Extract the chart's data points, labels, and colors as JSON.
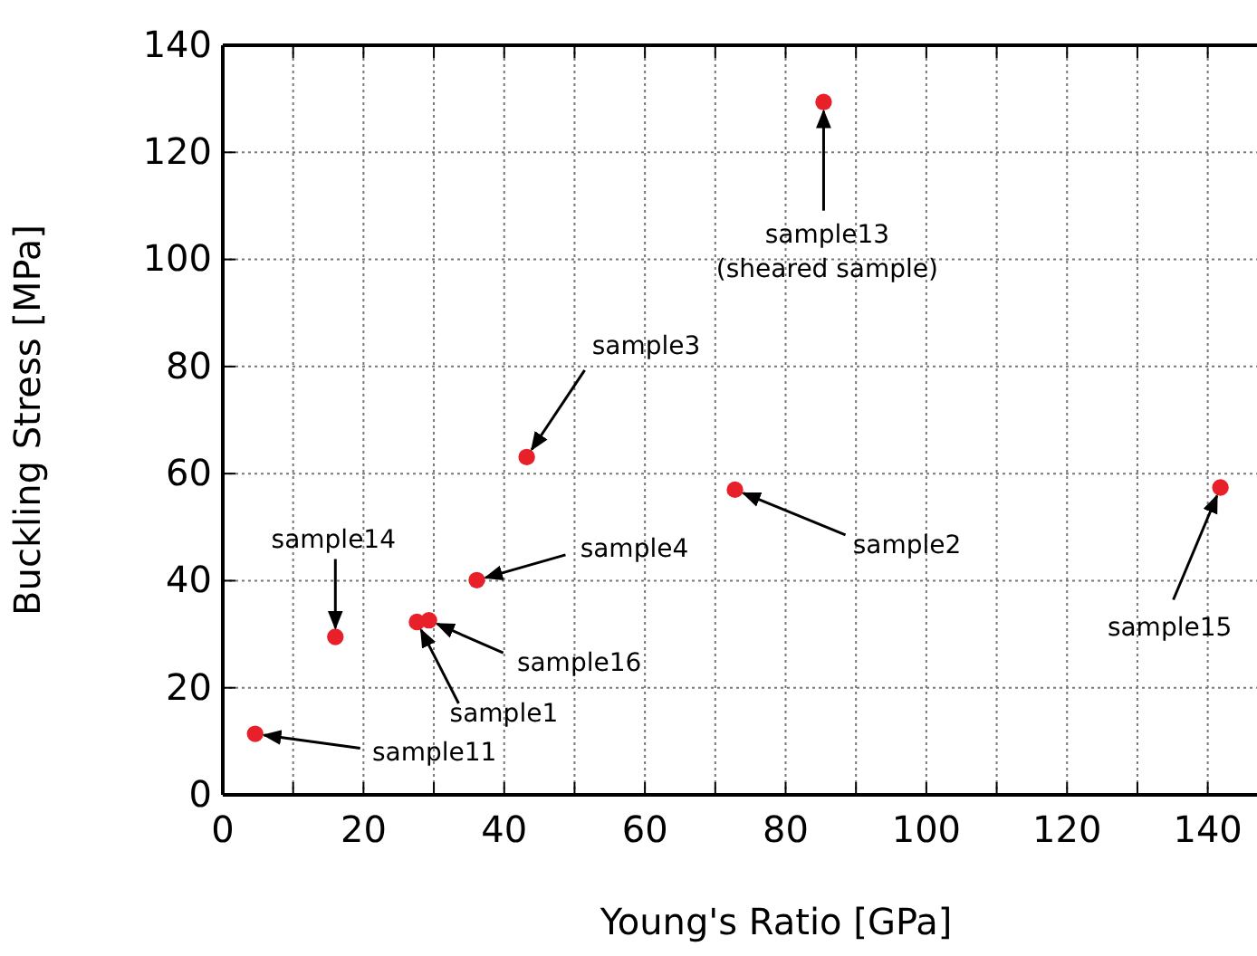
{
  "chart_data": {
    "type": "scatter",
    "xlabel": "Young's Ratio [GPa]",
    "ylabel": "Buckling Stress [MPa]",
    "x": [
      85.4,
      43.2,
      72.8,
      141.8,
      36.1,
      16.0,
      27.6,
      29.3,
      4.6
    ],
    "values": [
      129.4,
      63.1,
      57.0,
      57.4,
      40.1,
      29.5,
      32.3,
      32.6,
      11.4
    ],
    "color": "#e8202a",
    "marker": "circle",
    "grid": true,
    "xlim": [
      0,
      147
    ],
    "ylim": [
      0,
      140
    ],
    "xticks": [
      0,
      {
        "value": 10,
        "label": null
      },
      20,
      {
        "value": 30,
        "label": null
      },
      40,
      {
        "value": 50,
        "label": null
      },
      60,
      {
        "value": 70,
        "label": null
      },
      80,
      {
        "value": 90,
        "label": null
      },
      100,
      {
        "value": 110,
        "label": null
      },
      120,
      {
        "value": 130,
        "label": null
      },
      140
    ],
    "yticks": [
      0,
      20,
      40,
      60,
      80,
      100,
      120,
      140
    ],
    "annotations": [
      {
        "text": "sample13\n(sheared sample)",
        "x": 85.4,
        "y": 129.4
      },
      {
        "text": "sample3",
        "x": 43.2,
        "y": 63.1
      },
      {
        "text": "sample2",
        "x": 72.8,
        "y": 57.0
      },
      {
        "text": "sample15",
        "x": 141.8,
        "y": 57.4
      },
      {
        "text": "sample4",
        "x": 36.1,
        "y": 40.1
      },
      {
        "text": "sample14",
        "x": 16.0,
        "y": 29.5
      },
      {
        "text": "sample16",
        "x": 29.3,
        "y": 32.6
      },
      {
        "text": "sample1",
        "x": 27.6,
        "y": 32.3
      },
      {
        "text": "sample11",
        "x": 4.6,
        "y": 11.4
      }
    ]
  }
}
